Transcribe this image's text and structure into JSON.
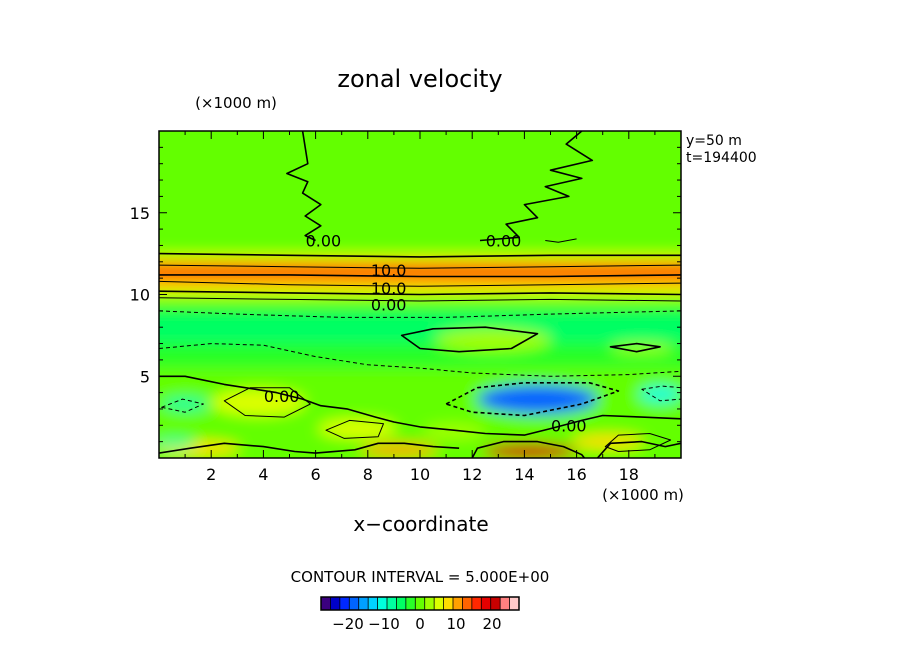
{
  "chart_data": {
    "type": "heatmap",
    "title": "zonal velocity",
    "xlabel": "x−coordinate",
    "x_unit": "(×1000 m)",
    "y_unit": "(×1000 m)",
    "xlim": [
      0,
      20
    ],
    "ylim": [
      0,
      20
    ],
    "xticks": [
      2,
      4,
      6,
      8,
      10,
      12,
      14,
      16,
      18
    ],
    "yticks": [
      5,
      10,
      15
    ],
    "info": [
      "y=50 m",
      "t=194400"
    ],
    "contour_interval_text": "CONTOUR INTERVAL = 5.000E+00",
    "contour_labels": [
      {
        "text": "0.00",
        "x": 6.3,
        "y": 13.3
      },
      {
        "text": "0.00",
        "x": 13.2,
        "y": 13.3
      },
      {
        "text": "10.0",
        "x": 8.8,
        "y": 11.5
      },
      {
        "text": "10.0",
        "x": 8.8,
        "y": 10.4
      },
      {
        "text": "0.00",
        "x": 8.8,
        "y": 9.4
      },
      {
        "text": "0.00",
        "x": 4.7,
        "y": 3.8
      },
      {
        "text": "0.00",
        "x": 15.7,
        "y": 2.0
      }
    ],
    "colorbar": {
      "ticks": [
        -20,
        -10,
        0,
        10,
        20
      ],
      "range": [
        -27.5,
        27.5
      ],
      "colors": [
        "#3b007f",
        "#0000c8",
        "#0028ff",
        "#0064ff",
        "#00a0ff",
        "#00d2ff",
        "#00ffdc",
        "#00ffa0",
        "#00ff64",
        "#28ff28",
        "#64ff00",
        "#a0ff00",
        "#dcff00",
        "#ffdc00",
        "#ffa000",
        "#ff6400",
        "#ff2800",
        "#e60000",
        "#c80000",
        "#ff8080",
        "#ffc8c8"
      ]
    },
    "field_bands": [
      {
        "y_range": [
          12.5,
          20
        ],
        "value": 0
      },
      {
        "y_range": [
          12.0,
          12.5
        ],
        "value": 6
      },
      {
        "y_range": [
          11.4,
          12.0
        ],
        "value": 12
      },
      {
        "y_range": [
          10.8,
          11.4
        ],
        "value": 14
      },
      {
        "y_range": [
          10.2,
          10.8
        ],
        "value": 8
      },
      {
        "y_range": [
          9.5,
          10.2
        ],
        "value": 3
      },
      {
        "y_range": [
          8.9,
          9.5
        ],
        "value": -2
      },
      {
        "y_range": [
          7.0,
          8.9
        ],
        "value": -6
      },
      {
        "y_range": [
          5.5,
          7.0
        ],
        "value": -3
      },
      {
        "y_range": [
          0,
          5.5
        ],
        "value": 0
      }
    ],
    "field_blobs": [
      {
        "cx": 14.5,
        "cy": 3.6,
        "rx": 2.3,
        "ry": 0.9,
        "value": -18
      },
      {
        "cx": 19.2,
        "cy": 3.9,
        "rx": 0.8,
        "ry": 0.5,
        "value": -10
      },
      {
        "cx": 14.2,
        "cy": 0.4,
        "rx": 1.8,
        "ry": 0.5,
        "value": 20
      },
      {
        "cx": 12.8,
        "cy": 7.2,
        "rx": 2.2,
        "ry": 0.7,
        "value": 2
      },
      {
        "cx": 18.5,
        "cy": 6.7,
        "rx": 1.2,
        "ry": 0.3,
        "value": 3
      },
      {
        "cx": 3.8,
        "cy": 3.4,
        "rx": 1.8,
        "ry": 0.8,
        "value": 6
      },
      {
        "cx": 7.6,
        "cy": 1.8,
        "rx": 1.5,
        "ry": 0.6,
        "value": 5
      },
      {
        "cx": 1.5,
        "cy": 0.6,
        "rx": 1.6,
        "ry": 0.45,
        "value": 8
      },
      {
        "cx": 9.2,
        "cy": 0.5,
        "rx": 1.5,
        "ry": 0.4,
        "value": 10
      },
      {
        "cx": 17.2,
        "cy": 1.0,
        "rx": 1.4,
        "ry": 0.45,
        "value": 8
      },
      {
        "cx": 11.3,
        "cy": 1.6,
        "rx": 1.2,
        "ry": 0.5,
        "value": 2
      },
      {
        "cx": 1.0,
        "cy": 3.3,
        "rx": 0.9,
        "ry": 0.4,
        "value": -7
      },
      {
        "cx": 0.6,
        "cy": 0.9,
        "rx": 0.8,
        "ry": 0.3,
        "value": -8
      }
    ],
    "contour_lines": [
      {
        "style": "solid",
        "width": 1.6,
        "points": [
          [
            0,
            12.5
          ],
          [
            5,
            12.4
          ],
          [
            10,
            12.3
          ],
          [
            15,
            12.4
          ],
          [
            20,
            12.4
          ]
        ]
      },
      {
        "style": "solid",
        "width": 1.0,
        "points": [
          [
            0,
            11.8
          ],
          [
            5,
            11.7
          ],
          [
            10,
            11.6
          ],
          [
            15,
            11.7
          ],
          [
            20,
            11.8
          ]
        ]
      },
      {
        "style": "solid",
        "width": 1.6,
        "points": [
          [
            0,
            11.2
          ],
          [
            5,
            11.2
          ],
          [
            10,
            11.1
          ],
          [
            15,
            11.1
          ],
          [
            20,
            11.2
          ]
        ]
      },
      {
        "style": "solid",
        "width": 1.0,
        "points": [
          [
            0,
            10.8
          ],
          [
            5,
            10.6
          ],
          [
            10,
            10.5
          ],
          [
            15,
            10.6
          ],
          [
            20,
            10.7
          ]
        ]
      },
      {
        "style": "solid",
        "width": 1.6,
        "points": [
          [
            0,
            10.2
          ],
          [
            5,
            10.1
          ],
          [
            10,
            10.0
          ],
          [
            15,
            10.1
          ],
          [
            20,
            10.0
          ]
        ]
      },
      {
        "style": "solid",
        "width": 1.0,
        "points": [
          [
            0,
            9.8
          ],
          [
            5,
            9.7
          ],
          [
            10,
            9.6
          ],
          [
            15,
            9.7
          ],
          [
            20,
            9.6
          ]
        ]
      },
      {
        "style": "dashed",
        "width": 1.0,
        "points": [
          [
            0,
            9.0
          ],
          [
            3,
            8.8
          ],
          [
            7,
            8.6
          ],
          [
            11,
            8.6
          ],
          [
            15,
            8.8
          ],
          [
            20,
            9.0
          ]
        ]
      },
      {
        "style": "dashed",
        "width": 1.0,
        "points": [
          [
            0,
            6.7
          ],
          [
            2,
            7.0
          ],
          [
            4,
            6.9
          ],
          [
            6,
            6.2
          ],
          [
            8,
            5.7
          ],
          [
            10,
            5.5
          ],
          [
            12,
            5.2
          ],
          [
            15,
            5.0
          ],
          [
            18,
            5.1
          ],
          [
            20,
            5.3
          ]
        ]
      },
      {
        "style": "solid",
        "width": 1.6,
        "closed": true,
        "points": [
          [
            9.3,
            7.5
          ],
          [
            10.5,
            7.9
          ],
          [
            12.5,
            8.0
          ],
          [
            14.5,
            7.6
          ],
          [
            13.5,
            6.7
          ],
          [
            11.5,
            6.5
          ],
          [
            10.0,
            6.7
          ]
        ]
      },
      {
        "style": "solid",
        "width": 1.6,
        "closed": true,
        "points": [
          [
            17.3,
            6.8
          ],
          [
            18.3,
            7.0
          ],
          [
            19.2,
            6.8
          ],
          [
            18.3,
            6.5
          ]
        ]
      },
      {
        "style": "dashed",
        "width": 1.6,
        "closed": true,
        "points": [
          [
            11.0,
            3.3
          ],
          [
            12.2,
            4.3
          ],
          [
            14.0,
            4.6
          ],
          [
            16.5,
            4.6
          ],
          [
            17.6,
            4.1
          ],
          [
            16.2,
            3.3
          ],
          [
            14.0,
            2.6
          ],
          [
            12.0,
            2.8
          ]
        ]
      },
      {
        "style": "dashed",
        "width": 1.0,
        "closed": true,
        "points": [
          [
            18.5,
            4.2
          ],
          [
            19.3,
            4.4
          ],
          [
            20,
            4.3
          ],
          [
            20,
            3.6
          ],
          [
            19.2,
            3.5
          ]
        ]
      },
      {
        "style": "solid",
        "width": 1.6,
        "points": [
          [
            0,
            5.0
          ],
          [
            1.0,
            5.0
          ],
          [
            2.5,
            4.5
          ],
          [
            4.5,
            4.0
          ],
          [
            5.5,
            3.6
          ],
          [
            6.2,
            3.2
          ],
          [
            7.2,
            3.0
          ],
          [
            8.3,
            2.5
          ],
          [
            9.0,
            2.2
          ],
          [
            10.0,
            1.9
          ],
          [
            11.3,
            1.7
          ],
          [
            12.5,
            1.5
          ],
          [
            14.0,
            1.4
          ],
          [
            15.0,
            1.8
          ],
          [
            16.2,
            2.3
          ],
          [
            17.0,
            2.6
          ],
          [
            18.5,
            2.5
          ],
          [
            20,
            2.4
          ]
        ]
      },
      {
        "style": "solid",
        "width": 1.0,
        "closed": true,
        "points": [
          [
            2.5,
            3.5
          ],
          [
            3.5,
            4.3
          ],
          [
            5.0,
            4.3
          ],
          [
            5.8,
            3.3
          ],
          [
            4.8,
            2.5
          ],
          [
            3.3,
            2.6
          ]
        ]
      },
      {
        "style": "solid",
        "width": 1.0,
        "closed": true,
        "points": [
          [
            6.4,
            1.7
          ],
          [
            7.3,
            2.3
          ],
          [
            8.6,
            2.1
          ],
          [
            8.4,
            1.3
          ],
          [
            7.1,
            1.2
          ]
        ]
      },
      {
        "style": "solid",
        "width": 1.6,
        "points": [
          [
            0,
            0.3
          ],
          [
            1.2,
            0.6
          ],
          [
            2.5,
            0.9
          ],
          [
            4.0,
            0.7
          ],
          [
            5.2,
            0.4
          ],
          [
            6.0,
            0.3
          ],
          [
            7.5,
            0.5
          ],
          [
            8.4,
            0.9
          ],
          [
            9.4,
            0.9
          ],
          [
            10.5,
            0.7
          ],
          [
            11.5,
            0.6
          ]
        ]
      },
      {
        "style": "solid",
        "width": 1.6,
        "points": [
          [
            12.0,
            0
          ],
          [
            12.2,
            0.6
          ],
          [
            13.2,
            1.0
          ],
          [
            14.5,
            1.0
          ],
          [
            15.5,
            0.7
          ],
          [
            16.2,
            0.2
          ],
          [
            16.3,
            0
          ]
        ]
      },
      {
        "style": "solid",
        "width": 1.6,
        "points": [
          [
            16.8,
            0
          ],
          [
            17.3,
            0.9
          ],
          [
            18.5,
            1.0
          ],
          [
            19.4,
            0.7
          ],
          [
            20,
            0.9
          ]
        ]
      },
      {
        "style": "solid",
        "width": 1.0,
        "closed": true,
        "points": [
          [
            17.1,
            0.7
          ],
          [
            17.6,
            1.4
          ],
          [
            18.8,
            1.5
          ],
          [
            19.6,
            1.1
          ],
          [
            18.8,
            0.5
          ],
          [
            17.6,
            0.4
          ]
        ]
      },
      {
        "style": "dashed",
        "width": 1.0,
        "closed": true,
        "points": [
          [
            0.1,
            3.1
          ],
          [
            0.9,
            3.6
          ],
          [
            1.7,
            3.3
          ],
          [
            1.0,
            2.8
          ]
        ]
      },
      {
        "style": "solid",
        "width": 1.6,
        "points": [
          [
            5.5,
            20
          ],
          [
            5.6,
            19.0
          ],
          [
            5.7,
            18.0
          ],
          [
            4.9,
            17.4
          ],
          [
            5.7,
            16.9
          ],
          [
            5.5,
            16.2
          ],
          [
            6.2,
            15.5
          ],
          [
            5.6,
            14.8
          ],
          [
            6.2,
            14.2
          ],
          [
            5.6,
            13.6
          ],
          [
            6.0,
            13.3
          ]
        ]
      },
      {
        "style": "solid",
        "width": 1.6,
        "points": [
          [
            16.2,
            20
          ],
          [
            15.6,
            19.2
          ],
          [
            16.6,
            18.2
          ],
          [
            15.0,
            17.6
          ],
          [
            16.2,
            17.1
          ],
          [
            14.8,
            16.6
          ],
          [
            15.7,
            16.0
          ],
          [
            14.0,
            15.5
          ],
          [
            14.5,
            14.7
          ],
          [
            13.3,
            14.3
          ],
          [
            13.8,
            13.5
          ],
          [
            12.3,
            13.3
          ]
        ]
      },
      {
        "style": "solid",
        "width": 1.0,
        "points": [
          [
            14.8,
            13.3
          ],
          [
            15.3,
            13.2
          ],
          [
            16.0,
            13.4
          ]
        ]
      }
    ]
  }
}
